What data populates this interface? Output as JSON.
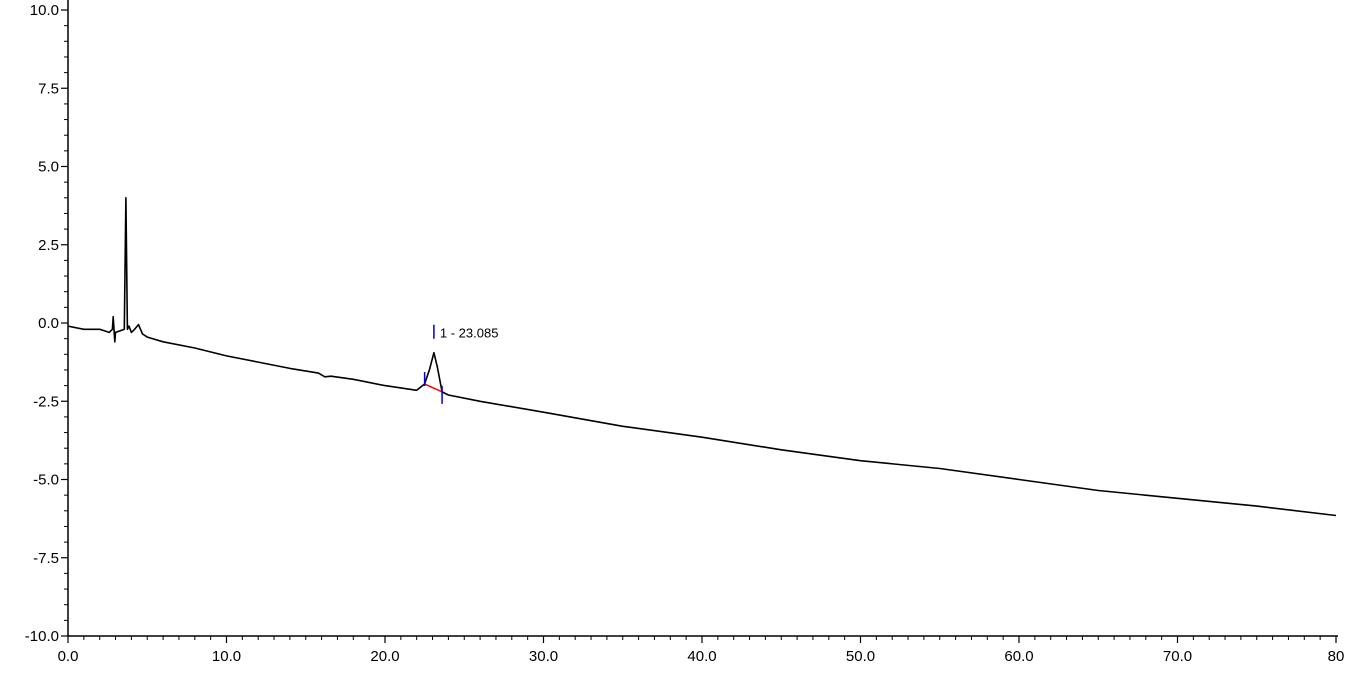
{
  "chart_data": {
    "type": "line",
    "title": "",
    "xlabel": "",
    "ylabel": "",
    "xlim": [
      0,
      80
    ],
    "ylim": [
      -10,
      10
    ],
    "x_ticks": [
      {
        "value": 0,
        "label": "0.0"
      },
      {
        "value": 10,
        "label": "10.0"
      },
      {
        "value": 20,
        "label": "20.0"
      },
      {
        "value": 30,
        "label": "30.0"
      },
      {
        "value": 40,
        "label": "40.0"
      },
      {
        "value": 50,
        "label": "50.0"
      },
      {
        "value": 60,
        "label": "60.0"
      },
      {
        "value": 70,
        "label": "70.0"
      },
      {
        "value": 80,
        "label": "80"
      }
    ],
    "y_ticks": [
      {
        "value": 10,
        "label": "10.0"
      },
      {
        "value": 7.5,
        "label": "7.5"
      },
      {
        "value": 5,
        "label": "5.0"
      },
      {
        "value": 2.5,
        "label": "2.5"
      },
      {
        "value": 0,
        "label": "0.0"
      },
      {
        "value": -2.5,
        "label": "-2.5"
      },
      {
        "value": -5,
        "label": "-5.0"
      },
      {
        "value": -7.5,
        "label": "-7.5"
      },
      {
        "value": -10,
        "label": "-10.0"
      }
    ],
    "grid": false,
    "series": [
      {
        "color": "#000000",
        "x": [
          0.0,
          1.0,
          2.0,
          2.6,
          2.8,
          2.85,
          2.95,
          3.0,
          3.3,
          3.55,
          3.65,
          3.75,
          3.85,
          4.0,
          4.2,
          4.45,
          4.7,
          5.0,
          6.0,
          8.0,
          10.0,
          12.0,
          14.0,
          15.8,
          16.2,
          16.6,
          18.0,
          20.0,
          22.0,
          22.5,
          22.8,
          23.085,
          23.3,
          23.6,
          24.0,
          26.0,
          30.0,
          35.0,
          40.0,
          45.0,
          50.0,
          55.0,
          60.0,
          65.0,
          70.0,
          75.0,
          80.0
        ],
        "y": [
          -0.1,
          -0.2,
          -0.2,
          -0.3,
          -0.2,
          0.2,
          -0.6,
          -0.3,
          -0.25,
          -0.2,
          4.0,
          -0.2,
          -0.1,
          -0.3,
          -0.2,
          -0.05,
          -0.35,
          -0.45,
          -0.6,
          -0.8,
          -1.05,
          -1.25,
          -1.45,
          -1.6,
          -1.72,
          -1.7,
          -1.8,
          -2.0,
          -2.15,
          -1.95,
          -1.5,
          -0.95,
          -1.4,
          -2.2,
          -2.3,
          -2.5,
          -2.85,
          -3.3,
          -3.65,
          -4.05,
          -4.4,
          -4.65,
          -5.0,
          -5.35,
          -5.6,
          -5.85,
          -6.15
        ]
      }
    ],
    "annotations": [
      {
        "label": "1 - 23.085",
        "x": 23.085,
        "y": -0.95,
        "peak_start": 22.5,
        "peak_end": 23.6,
        "baseline_color": "#ff0000",
        "marker_color": "#0000c8"
      }
    ]
  }
}
